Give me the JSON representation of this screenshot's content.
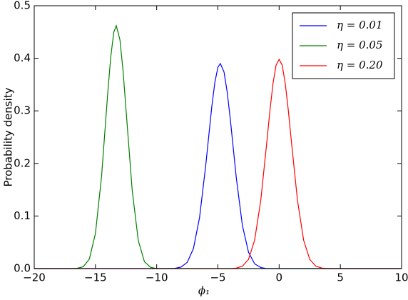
{
  "chart_data": {
    "type": "line",
    "x_label": "ϕ₁",
    "y_label": "Probability density",
    "xlim": [
      -20,
      10
    ],
    "ylim": [
      0,
      0.5
    ],
    "xticks": [
      {
        "value": -20,
        "label": "−20"
      },
      {
        "value": -15,
        "label": "−15"
      },
      {
        "value": -10,
        "label": "−10"
      },
      {
        "value": -5,
        "label": "−5"
      },
      0,
      5,
      10
    ],
    "yticks": [
      {
        "value": 0,
        "label": "0.0"
      },
      0.1,
      0.2,
      0.3,
      0.4,
      0.5
    ],
    "legend": "upper right",
    "series": [
      {
        "name": "η = 0.01",
        "color": "#0000ff",
        "x": [
          -20,
          -9,
          -8.5,
          -8,
          -7.5,
          -7,
          -6.5,
          -6,
          -5.5,
          -5.25,
          -5,
          -4.8,
          -4.5,
          -4.25,
          -4,
          -3.5,
          -3,
          -2.5,
          -2,
          -1.5,
          -1,
          10
        ],
        "values": [
          0,
          0,
          0.0005,
          0.003,
          0.012,
          0.038,
          0.097,
          0.195,
          0.308,
          0.354,
          0.383,
          0.39,
          0.374,
          0.337,
          0.287,
          0.173,
          0.082,
          0.031,
          0.009,
          0.002,
          0,
          0
        ]
      },
      {
        "name": "η = 0.05",
        "color": "#008000",
        "x": [
          -20,
          -17,
          -16.5,
          -16,
          -15.5,
          -15,
          -14.5,
          -14,
          -13.75,
          -13.5,
          -13.3,
          -13,
          -12.75,
          -12.5,
          -12,
          -11.5,
          -11,
          -10.5,
          -10,
          10
        ],
        "values": [
          0,
          0,
          0.0005,
          0.0035,
          0.018,
          0.067,
          0.176,
          0.333,
          0.403,
          0.45,
          0.462,
          0.435,
          0.377,
          0.301,
          0.149,
          0.053,
          0.013,
          0.0024,
          0,
          0
        ]
      },
      {
        "name": "η = 0.20",
        "color": "#ff0000",
        "x": [
          -20,
          -4,
          -3.5,
          -3,
          -2.5,
          -2,
          -1.5,
          -1,
          -0.75,
          -0.5,
          -0.25,
          0,
          0.25,
          0.5,
          0.75,
          1,
          1.5,
          2,
          2.5,
          3,
          3.5,
          4,
          10
        ],
        "values": [
          0,
          0,
          0.0009,
          0.0044,
          0.0175,
          0.054,
          0.1295,
          0.242,
          0.301,
          0.352,
          0.387,
          0.398,
          0.387,
          0.352,
          0.301,
          0.242,
          0.1295,
          0.054,
          0.0175,
          0.0044,
          0.0009,
          0,
          0
        ]
      }
    ]
  }
}
